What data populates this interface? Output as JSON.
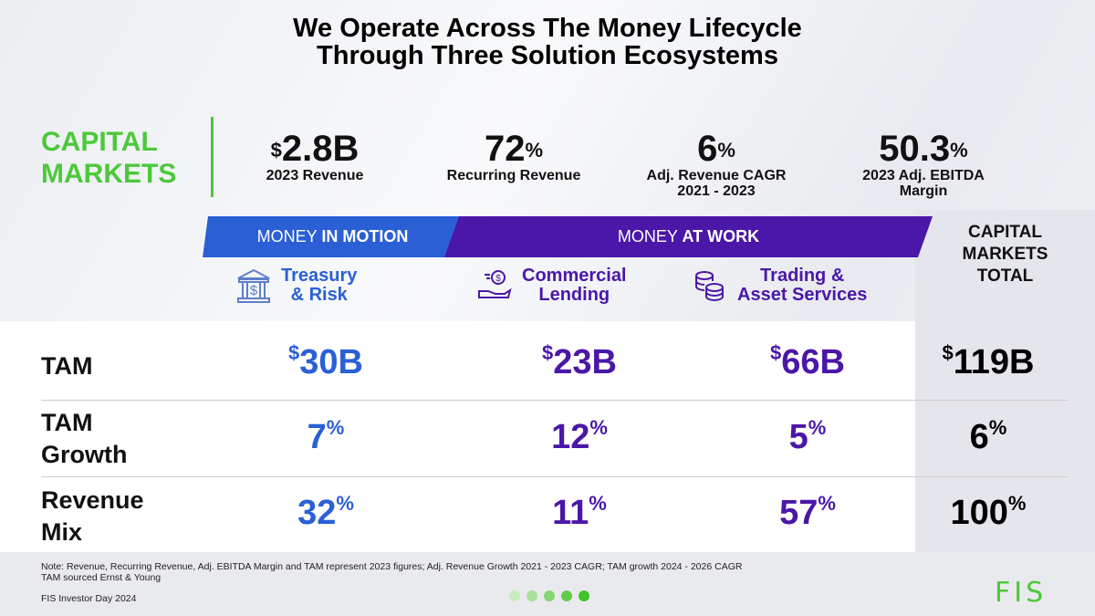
{
  "title": {
    "line1": "We Operate Across The Money Lifecycle",
    "line2": "Through Three Solution Ecosystems"
  },
  "segment": {
    "line1": "CAPITAL",
    "line2": "MARKETS"
  },
  "stats": [
    {
      "prefix": "$",
      "value": "2.8B",
      "suffix": "",
      "label": "2023 Revenue"
    },
    {
      "prefix": "",
      "value": "72",
      "suffix": "%",
      "label": "Recurring Revenue"
    },
    {
      "prefix": "",
      "value": "6",
      "suffix": "%",
      "label": "Adj. Revenue CAGR 2021 - 2023"
    },
    {
      "prefix": "",
      "value": "50.3",
      "suffix": "%",
      "label": "2023 Adj. EBITDA Margin"
    }
  ],
  "banners": {
    "motion": {
      "a": "MONEY ",
      "b": "IN MOTION"
    },
    "work": {
      "a": "MONEY ",
      "b": "AT WORK"
    }
  },
  "total_header": {
    "line1": "CAPITAL",
    "line2": "MARKETS",
    "line3": "TOTAL"
  },
  "solutions": [
    {
      "line1": "Treasury",
      "line2": "& Risk",
      "icon": "bank-icon"
    },
    {
      "line1": "Commercial",
      "line2": "Lending",
      "icon": "hand-money-icon"
    },
    {
      "line1": "Trading &",
      "line2": "Asset Services",
      "icon": "coins-icon"
    }
  ],
  "rows": [
    {
      "label1": "TAM",
      "label2": "",
      "values": [
        {
          "p": "$",
          "v": "30B",
          "s": ""
        },
        {
          "p": "$",
          "v": "23B",
          "s": ""
        },
        {
          "p": "$",
          "v": "66B",
          "s": ""
        },
        {
          "p": "$",
          "v": "119B",
          "s": ""
        }
      ]
    },
    {
      "label1": "TAM",
      "label2": "Growth",
      "values": [
        {
          "p": "",
          "v": "7",
          "s": "%"
        },
        {
          "p": "",
          "v": "12",
          "s": "%"
        },
        {
          "p": "",
          "v": "5",
          "s": "%"
        },
        {
          "p": "",
          "v": "6",
          "s": "%"
        }
      ]
    },
    {
      "label1": "Revenue",
      "label2": "Mix",
      "values": [
        {
          "p": "",
          "v": "32",
          "s": "%"
        },
        {
          "p": "",
          "v": "11",
          "s": "%"
        },
        {
          "p": "",
          "v": "57",
          "s": "%"
        },
        {
          "p": "",
          "v": "100",
          "s": "%"
        }
      ]
    }
  ],
  "footer": {
    "note1": "Note: Revenue, Recurring Revenue, Adj. EBITDA Margin and TAM represent 2023 figures; Adj. Revenue Growth 2021 - 2023 CAGR; TAM growth 2024 - 2026 CAGR",
    "note2": "TAM sourced Ernst & Young",
    "event": "FIS Investor Day 2024",
    "logo": "FIS"
  },
  "colors": {
    "green": "#4cc93a",
    "blue": "#2a5fd6",
    "purple": "#4a17a8"
  }
}
